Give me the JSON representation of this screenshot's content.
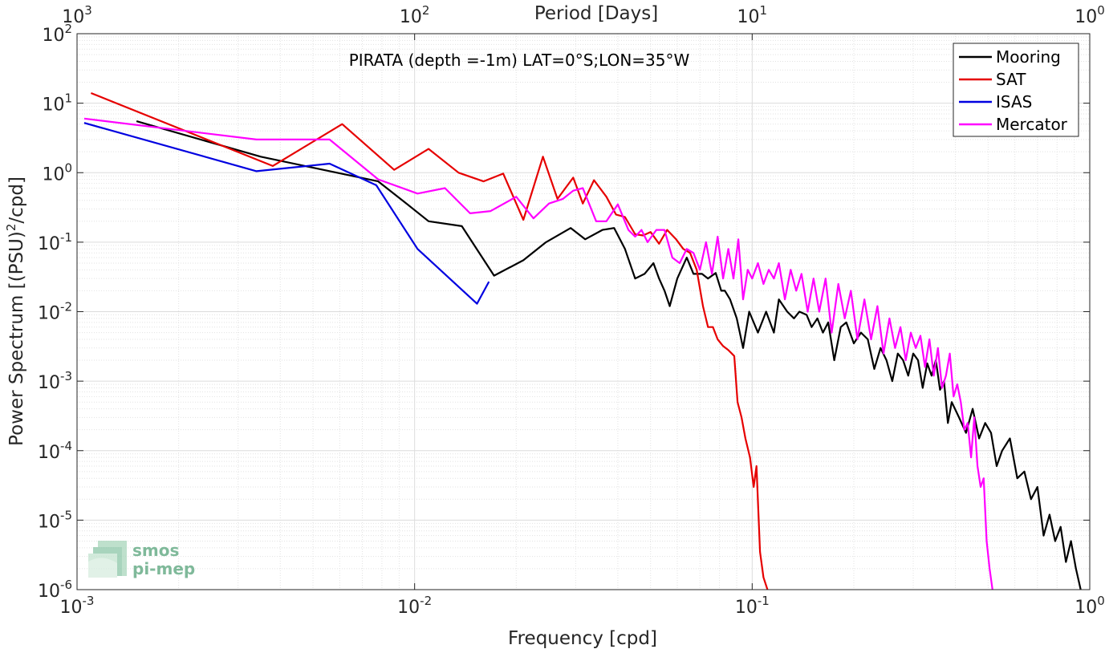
{
  "chart_data": {
    "type": "line",
    "title": "PIRATA (depth =-1m) LAT=0°S;LON=35°W",
    "xlabel": "Frequency [cpd]",
    "ylabel": "Power Spectrum [(PSU)²/cpd]",
    "ylabel_parts": {
      "base": "Power Spectrum [(PSU)",
      "sup": "2",
      "tail": "/cpd]"
    },
    "top_xlabel": "Period [Days]",
    "xscale": "log",
    "yscale": "log",
    "xlim": [
      0.001,
      1
    ],
    "ylim": [
      1e-06,
      100
    ],
    "grid": true,
    "legend_position": "top-right",
    "x_ticks": [
      0.001,
      0.01,
      0.1,
      1
    ],
    "x_tick_labels": [
      {
        "base": "10",
        "exp": "-3"
      },
      {
        "base": "10",
        "exp": "-2"
      },
      {
        "base": "10",
        "exp": "-1"
      },
      {
        "base": "10",
        "exp": "0"
      }
    ],
    "y_ticks": [
      1e-06,
      1e-05,
      0.0001,
      0.001,
      0.01,
      0.1,
      1,
      10,
      100
    ],
    "y_tick_labels": [
      {
        "base": "10",
        "exp": "-6"
      },
      {
        "base": "10",
        "exp": "-5"
      },
      {
        "base": "10",
        "exp": "-4"
      },
      {
        "base": "10",
        "exp": "-3"
      },
      {
        "base": "10",
        "exp": "-2"
      },
      {
        "base": "10",
        "exp": "-1"
      },
      {
        "base": "10",
        "exp": "0"
      },
      {
        "base": "10",
        "exp": "1"
      },
      {
        "base": "10",
        "exp": "2"
      }
    ],
    "top_ticks": [
      1000,
      100,
      10,
      1
    ],
    "top_tick_labels": [
      {
        "base": "10",
        "exp": "3"
      },
      {
        "base": "10",
        "exp": "2"
      },
      {
        "base": "10",
        "exp": "1"
      },
      {
        "base": "10",
        "exp": "0"
      }
    ],
    "series": [
      {
        "name": "Mooring",
        "color": "#000000",
        "x": [
          0.0015,
          0.0035,
          0.0078,
          0.0092,
          0.011,
          0.0138,
          0.0172,
          0.021,
          0.0245,
          0.029,
          0.032,
          0.036,
          0.039,
          0.042,
          0.045,
          0.048,
          0.051,
          0.053,
          0.055,
          0.057,
          0.06,
          0.064,
          0.067,
          0.071,
          0.074,
          0.078,
          0.081,
          0.083,
          0.086,
          0.09,
          0.094,
          0.098,
          0.104,
          0.11,
          0.116,
          0.12,
          0.127,
          0.133,
          0.138,
          0.145,
          0.15,
          0.156,
          0.162,
          0.168,
          0.175,
          0.183,
          0.19,
          0.2,
          0.21,
          0.22,
          0.23,
          0.24,
          0.25,
          0.26,
          0.27,
          0.28,
          0.29,
          0.3,
          0.31,
          0.32,
          0.33,
          0.34,
          0.35,
          0.36,
          0.37,
          0.38,
          0.39,
          0.41,
          0.43,
          0.45,
          0.47,
          0.49,
          0.51,
          0.53,
          0.55,
          0.58,
          0.61,
          0.64,
          0.67,
          0.7,
          0.73,
          0.76,
          0.79,
          0.82,
          0.85,
          0.88,
          0.91,
          0.94
        ],
        "y": [
          5.5,
          1.7,
          0.75,
          0.4,
          0.2,
          0.17,
          0.033,
          0.055,
          0.1,
          0.16,
          0.11,
          0.15,
          0.16,
          0.08,
          0.03,
          0.035,
          0.05,
          0.03,
          0.02,
          0.012,
          0.03,
          0.06,
          0.035,
          0.035,
          0.03,
          0.036,
          0.02,
          0.02,
          0.015,
          0.008,
          0.003,
          0.01,
          0.005,
          0.01,
          0.005,
          0.015,
          0.01,
          0.008,
          0.01,
          0.009,
          0.006,
          0.008,
          0.005,
          0.007,
          0.002,
          0.006,
          0.007,
          0.0035,
          0.005,
          0.004,
          0.0015,
          0.003,
          0.002,
          0.001,
          0.0025,
          0.002,
          0.0012,
          0.0025,
          0.002,
          0.0008,
          0.0018,
          0.0012,
          0.002,
          0.00075,
          0.001,
          0.00025,
          0.0005,
          0.0003,
          0.00018,
          0.0004,
          0.00015,
          0.00025,
          0.00018,
          6e-05,
          0.0001,
          0.00015,
          4e-05,
          5e-05,
          2e-05,
          3e-05,
          6e-06,
          1.2e-05,
          5e-06,
          8e-06,
          2.5e-06,
          5e-06,
          2e-06,
          1e-06
        ]
      },
      {
        "name": "SAT",
        "color": "#e60000",
        "x": [
          0.0011,
          0.0038,
          0.0061,
          0.0087,
          0.011,
          0.0135,
          0.016,
          0.0183,
          0.021,
          0.024,
          0.0265,
          0.0295,
          0.0315,
          0.034,
          0.037,
          0.0395,
          0.042,
          0.045,
          0.0475,
          0.05,
          0.053,
          0.056,
          0.0595,
          0.0625,
          0.0655,
          0.0685,
          0.0715,
          0.074,
          0.0765,
          0.079,
          0.082,
          0.085,
          0.087,
          0.0885,
          0.0905,
          0.093,
          0.0955,
          0.0985,
          0.101,
          0.103,
          0.1055,
          0.108,
          0.111
        ],
        "y": [
          14,
          1.25,
          5.0,
          1.1,
          2.2,
          1.0,
          0.75,
          0.97,
          0.21,
          1.7,
          0.42,
          0.85,
          0.36,
          0.78,
          0.45,
          0.25,
          0.23,
          0.13,
          0.125,
          0.14,
          0.095,
          0.15,
          0.11,
          0.08,
          0.07,
          0.04,
          0.012,
          0.006,
          0.006,
          0.004,
          0.0032,
          0.0028,
          0.0025,
          0.0023,
          0.0005,
          0.0003,
          0.00015,
          8e-05,
          3e-05,
          6e-05,
          3.5e-06,
          1.5e-06,
          1e-06
        ]
      },
      {
        "name": "ISAS",
        "color": "#0000e0",
        "x": [
          0.00105,
          0.0034,
          0.0056,
          0.0077,
          0.0102,
          0.0153,
          0.0166
        ],
        "y": [
          5.2,
          1.05,
          1.35,
          0.66,
          0.08,
          0.013,
          0.027
        ]
      },
      {
        "name": "Mercator",
        "color": "#ff00ff",
        "x": [
          0.00105,
          0.0034,
          0.0056,
          0.0078,
          0.0102,
          0.0123,
          0.0146,
          0.0168,
          0.02,
          0.0225,
          0.025,
          0.0275,
          0.0295,
          0.0315,
          0.0345,
          0.037,
          0.04,
          0.043,
          0.045,
          0.047,
          0.049,
          0.052,
          0.055,
          0.058,
          0.061,
          0.064,
          0.067,
          0.07,
          0.073,
          0.076,
          0.079,
          0.082,
          0.085,
          0.088,
          0.091,
          0.094,
          0.097,
          0.1,
          0.104,
          0.108,
          0.112,
          0.116,
          0.12,
          0.125,
          0.13,
          0.135,
          0.14,
          0.146,
          0.152,
          0.158,
          0.165,
          0.172,
          0.18,
          0.188,
          0.196,
          0.205,
          0.215,
          0.225,
          0.235,
          0.245,
          0.255,
          0.265,
          0.275,
          0.285,
          0.295,
          0.305,
          0.315,
          0.325,
          0.335,
          0.345,
          0.355,
          0.365,
          0.375,
          0.385,
          0.395,
          0.405,
          0.415,
          0.425,
          0.435,
          0.445,
          0.455,
          0.465,
          0.475,
          0.485,
          0.495,
          0.505,
          0.515
        ],
        "y": [
          6.0,
          3.0,
          3.0,
          0.8,
          0.5,
          0.6,
          0.26,
          0.28,
          0.45,
          0.22,
          0.36,
          0.42,
          0.55,
          0.6,
          0.2,
          0.2,
          0.35,
          0.15,
          0.12,
          0.15,
          0.1,
          0.15,
          0.15,
          0.06,
          0.05,
          0.08,
          0.07,
          0.04,
          0.1,
          0.035,
          0.12,
          0.03,
          0.08,
          0.03,
          0.11,
          0.015,
          0.04,
          0.03,
          0.05,
          0.025,
          0.04,
          0.03,
          0.05,
          0.015,
          0.04,
          0.02,
          0.035,
          0.01,
          0.03,
          0.01,
          0.03,
          0.005,
          0.025,
          0.008,
          0.02,
          0.004,
          0.015,
          0.004,
          0.012,
          0.0025,
          0.008,
          0.003,
          0.006,
          0.002,
          0.005,
          0.003,
          0.0045,
          0.0016,
          0.004,
          0.0012,
          0.003,
          0.0008,
          0.0012,
          0.0025,
          0.0006,
          0.0009,
          0.0005,
          0.0002,
          0.00025,
          8e-05,
          0.0003,
          6e-05,
          3e-05,
          4e-05,
          5e-06,
          2e-06,
          1e-06
        ]
      }
    ]
  },
  "logo": {
    "line1": "smos",
    "line2": "pi-mep"
  }
}
